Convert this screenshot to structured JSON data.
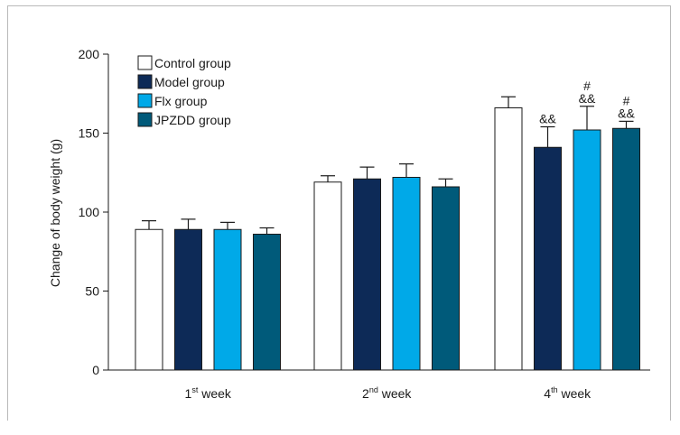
{
  "chart_data": {
    "type": "bar",
    "ylabel": "Change of body weight (g)",
    "ylim": [
      0,
      200
    ],
    "yticks": [
      0,
      50,
      100,
      150,
      200
    ],
    "categories": [
      {
        "base": "1",
        "sup": "st",
        "suffix": " week"
      },
      {
        "base": "2",
        "sup": "nd",
        "suffix": " week"
      },
      {
        "base": "4",
        "sup": "th",
        "suffix": " week"
      }
    ],
    "legend_position": "top-left",
    "series": [
      {
        "name": "Control group",
        "color": "#ffffff",
        "values": [
          89,
          119,
          166
        ],
        "errors": [
          5.5,
          4,
          7
        ],
        "annotations": [
          "",
          "",
          ""
        ]
      },
      {
        "name": "Model group",
        "color": "#0d2a57",
        "values": [
          89,
          121,
          141
        ],
        "errors": [
          6.5,
          7.5,
          13
        ],
        "annotations": [
          "",
          "",
          "&&"
        ]
      },
      {
        "name": "Flx group",
        "color": "#00a9e8",
        "values": [
          89,
          122,
          152
        ],
        "errors": [
          4.5,
          8.5,
          15
        ],
        "annotations": [
          "",
          "",
          "#\n&&"
        ]
      },
      {
        "name": "JPZDD group",
        "color": "#005a7a",
        "values": [
          86,
          116,
          153
        ],
        "errors": [
          4,
          5,
          4.5
        ],
        "annotations": [
          "",
          "",
          "#\n&&"
        ]
      }
    ]
  }
}
